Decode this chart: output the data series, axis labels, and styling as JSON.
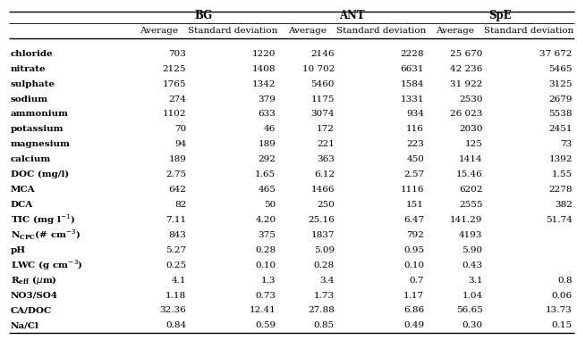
{
  "group_headers": [
    "BG",
    "ANT",
    "SpE"
  ],
  "col_headers": [
    "Average",
    "Standard deviation",
    "Average",
    "Standard deviation",
    "Average",
    "Standard deviation"
  ],
  "data": [
    [
      "chloride",
      "703",
      "1220",
      "2146",
      "2228",
      "25 670",
      "37 672"
    ],
    [
      "nitrate",
      "2125",
      "1408",
      "10 702",
      "6631",
      "42 236",
      "5465"
    ],
    [
      "sulphate",
      "1765",
      "1342",
      "5460",
      "1584",
      "31 922",
      "3125"
    ],
    [
      "sodium",
      "274",
      "379",
      "1175",
      "1331",
      "2530",
      "2679"
    ],
    [
      "ammonium",
      "1102",
      "633",
      "3074",
      "934",
      "26 023",
      "5538"
    ],
    [
      "potassium",
      "70",
      "46",
      "172",
      "116",
      "2030",
      "2451"
    ],
    [
      "magnesium",
      "94",
      "189",
      "221",
      "223",
      "125",
      "73"
    ],
    [
      "calcium",
      "189",
      "292",
      "363",
      "450",
      "1414",
      "1392"
    ],
    [
      "DOC (mg/l)",
      "2.75",
      "1.65",
      "6.12",
      "2.57",
      "15.46",
      "1.55"
    ],
    [
      "MCA",
      "642",
      "465",
      "1466",
      "1116",
      "6202",
      "2278"
    ],
    [
      "DCA",
      "82",
      "50",
      "250",
      "151",
      "2555",
      "382"
    ],
    [
      "TIC_SPECIAL",
      "7.11",
      "4.20",
      "25.16",
      "6.47",
      "141.29",
      "51.74"
    ],
    [
      "NCPC_SPECIAL",
      "843",
      "375",
      "1837",
      "792",
      "4193",
      ""
    ],
    [
      "pH",
      "5.27",
      "0.28",
      "5.09",
      "0.95",
      "5.90",
      ""
    ],
    [
      "LWC_SPECIAL",
      "0.25",
      "0.10",
      "0.28",
      "0.10",
      "0.43",
      ""
    ],
    [
      "REFF_SPECIAL",
      "4.1",
      "1.3",
      "3.4",
      "0.7",
      "3.1",
      "0.8"
    ],
    [
      "NO3/SO4",
      "1.18",
      "0.73",
      "1.73",
      "1.17",
      "1.04",
      "0.06"
    ],
    [
      "CA/DOC",
      "32.36",
      "12.41",
      "27.88",
      "6.86",
      "56.65",
      "13.73"
    ],
    [
      "Na/Cl",
      "0.84",
      "0.59",
      "0.85",
      "0.49",
      "0.30",
      "0.15"
    ]
  ],
  "bg_color": "#ffffff",
  "text_color": "#000000",
  "line_color": "#000000",
  "fig_width": 6.45,
  "fig_height": 3.81,
  "dpi": 100
}
